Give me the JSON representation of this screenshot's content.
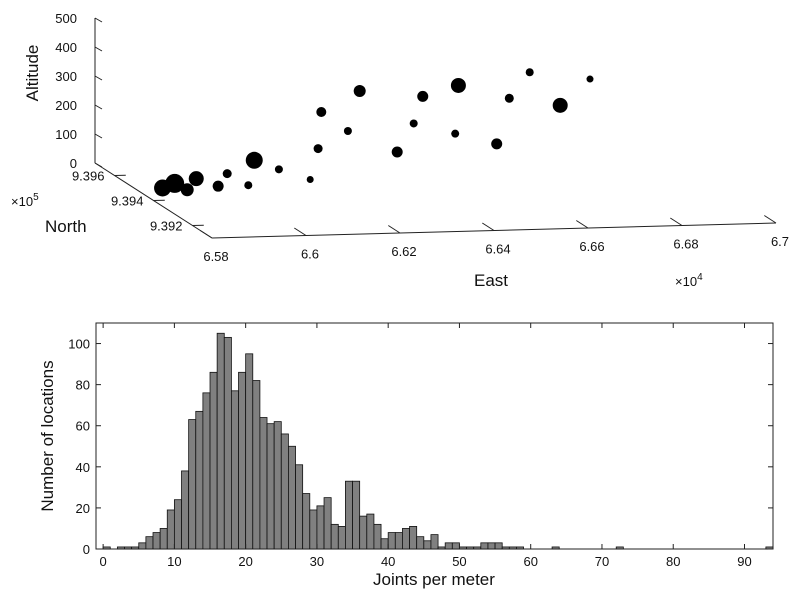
{
  "chart_data": [
    {
      "type": "scatter",
      "xlabel": "East",
      "ylabel": "North",
      "zlabel": "Altitude",
      "x_ticks": [
        "6.58",
        "6.6",
        "6.62",
        "6.64",
        "6.66",
        "6.68",
        "6.7"
      ],
      "x_multiplier": "×10",
      "x_exponent": "4",
      "y_ticks": [
        "9.392",
        "9.394",
        "9.396"
      ],
      "y_multiplier": "×10",
      "y_exponent": "5",
      "z_ticks": [
        "0",
        "100",
        "200",
        "300",
        "400",
        "500"
      ],
      "xlim": [
        65800,
        67000
      ],
      "ylim": [
        939100,
        939700
      ],
      "zlim": [
        0,
        500
      ],
      "points": [
        {
          "x": 65840,
          "y": 939450,
          "z": 20,
          "size": 14
        },
        {
          "x": 65870,
          "y": 939460,
          "z": 30,
          "size": 16
        },
        {
          "x": 65880,
          "y": 939420,
          "z": 25,
          "size": 10
        },
        {
          "x": 65920,
          "y": 939470,
          "z": 40,
          "size": 12
        },
        {
          "x": 65950,
          "y": 939430,
          "z": 30,
          "size": 8
        },
        {
          "x": 65990,
          "y": 939480,
          "z": 50,
          "size": 6
        },
        {
          "x": 66010,
          "y": 939420,
          "z": 35,
          "size": 5
        },
        {
          "x": 66060,
          "y": 939510,
          "z": 80,
          "size": 14
        },
        {
          "x": 66100,
          "y": 939480,
          "z": 60,
          "size": 5
        },
        {
          "x": 66150,
          "y": 939440,
          "z": 40,
          "size": 4
        },
        {
          "x": 66200,
          "y": 939520,
          "z": 110,
          "size": 6
        },
        {
          "x": 66240,
          "y": 939600,
          "z": 200,
          "size": 7
        },
        {
          "x": 66280,
          "y": 939560,
          "z": 150,
          "size": 5
        },
        {
          "x": 66330,
          "y": 939620,
          "z": 260,
          "size": 9
        },
        {
          "x": 66360,
          "y": 939500,
          "z": 100,
          "size": 8
        },
        {
          "x": 66420,
          "y": 939560,
          "z": 170,
          "size": 5
        },
        {
          "x": 66460,
          "y": 939610,
          "z": 240,
          "size": 8
        },
        {
          "x": 66500,
          "y": 939540,
          "z": 140,
          "size": 5
        },
        {
          "x": 66540,
          "y": 939620,
          "z": 270,
          "size": 12
        },
        {
          "x": 66580,
          "y": 939520,
          "z": 110,
          "size": 8
        },
        {
          "x": 66640,
          "y": 939600,
          "z": 230,
          "size": 6
        },
        {
          "x": 66700,
          "y": 939640,
          "z": 300,
          "size": 5
        },
        {
          "x": 66740,
          "y": 939580,
          "z": 210,
          "size": 12
        },
        {
          "x": 66820,
          "y": 939620,
          "z": 280,
          "size": 4
        }
      ]
    },
    {
      "type": "bar",
      "xlabel": "Joints per meter",
      "ylabel": "Number of locations",
      "xlim": [
        -1,
        94
      ],
      "ylim": [
        0,
        110
      ],
      "x_ticks": [
        0,
        10,
        20,
        30,
        40,
        50,
        60,
        70,
        80,
        90
      ],
      "y_ticks": [
        0,
        20,
        40,
        60,
        80,
        100
      ],
      "bin_width": 1,
      "bins": [
        0,
        1,
        2,
        3,
        4,
        5,
        6,
        7,
        8,
        9,
        10,
        11,
        12,
        13,
        14,
        15,
        16,
        17,
        18,
        19,
        20,
        21,
        22,
        23,
        24,
        25,
        26,
        27,
        28,
        29,
        30,
        31,
        32,
        33,
        34,
        35,
        36,
        37,
        38,
        39,
        40,
        41,
        42,
        43,
        44,
        45,
        46,
        47,
        48,
        49,
        50,
        51,
        52,
        53,
        54,
        55,
        56,
        57,
        58,
        59,
        60,
        61,
        62,
        63,
        64,
        65,
        66,
        67,
        68,
        69,
        70,
        71,
        72,
        73,
        74,
        75,
        76,
        77,
        78,
        79,
        80,
        81,
        82,
        83,
        84,
        85,
        86,
        87,
        88,
        89,
        90,
        91,
        92,
        93
      ],
      "values": [
        1,
        0,
        1,
        1,
        1,
        3,
        6,
        8,
        10,
        19,
        24,
        38,
        63,
        67,
        76,
        86,
        105,
        103,
        77,
        86,
        95,
        82,
        64,
        61,
        62,
        56,
        50,
        41,
        27,
        19,
        21,
        25,
        12,
        11,
        33,
        33,
        16,
        17,
        12,
        5,
        8,
        8,
        10,
        11,
        6,
        4,
        7,
        1,
        3,
        3,
        1,
        1,
        1,
        3,
        3,
        3,
        1,
        1,
        1,
        0,
        0,
        0,
        0,
        1,
        0,
        0,
        0,
        0,
        0,
        0,
        0,
        0,
        1,
        0,
        0,
        0,
        0,
        0,
        0,
        0,
        0,
        0,
        0,
        0,
        0,
        0,
        0,
        0,
        0,
        0,
        0,
        0,
        0,
        1
      ]
    }
  ]
}
